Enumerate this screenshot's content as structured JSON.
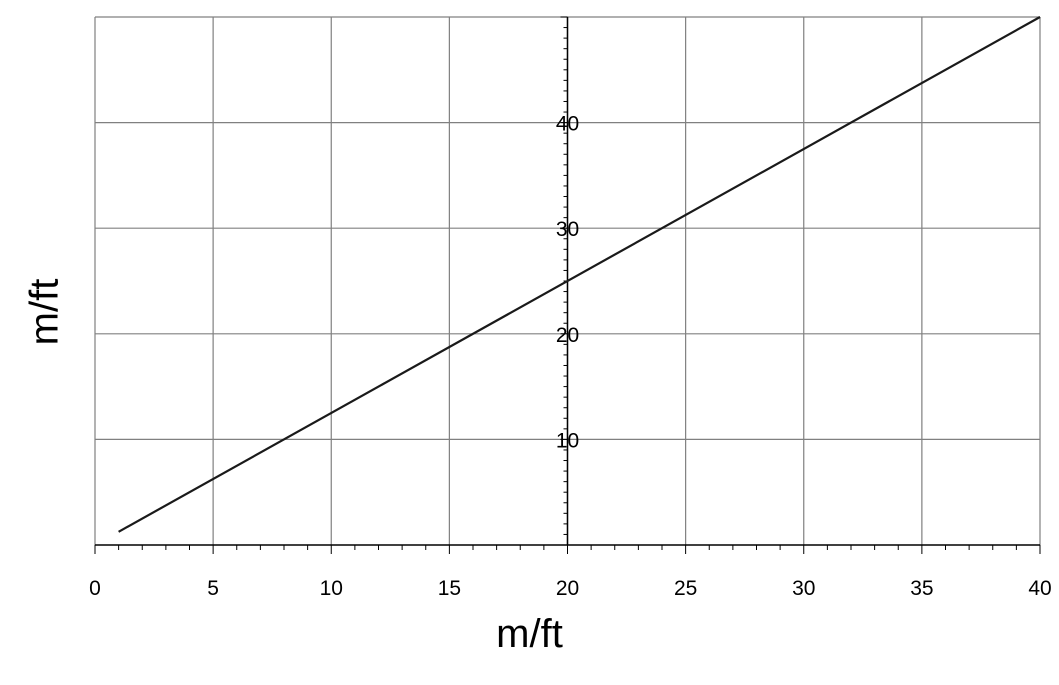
{
  "chart_data": {
    "type": "line",
    "title": "",
    "xlabel": "m/ft",
    "ylabel": "m/ft",
    "xlim": [
      0,
      40
    ],
    "ylim": [
      0,
      50
    ],
    "grid": true,
    "x_ticks": [
      0,
      5,
      10,
      15,
      20,
      25,
      30,
      35,
      40
    ],
    "y_tick_labels": [
      10,
      20,
      30,
      40
    ],
    "series": [
      {
        "x": [
          1,
          40
        ],
        "y": [
          1.25,
          50
        ]
      }
    ],
    "colors": {
      "line": "#1a1a1a",
      "grid": "#808080",
      "axis": "#000000"
    }
  }
}
